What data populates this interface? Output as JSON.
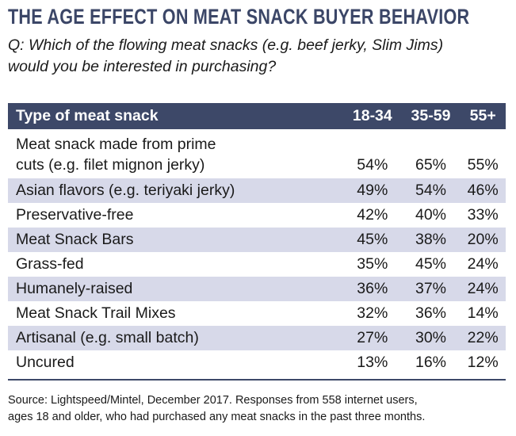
{
  "header": {
    "title": "THE AGE EFFECT ON MEAT SNACK BUYER BEHAVIOR",
    "question": [
      "Q: Which of the flowing meat snacks (e.g. beef jerky, Slim Jims)",
      "would you be interested in purchasing?"
    ]
  },
  "table": {
    "columns": [
      "Type of meat snack",
      "18-34",
      "35-59",
      "55+"
    ],
    "rows": [
      [
        [
          "Meat snack made from prime",
          "cuts (e.g. filet mignon jerky)"
        ],
        "54%",
        "65%",
        "55%"
      ],
      [
        "Asian flavors (e.g. teriyaki jerky)",
        "49%",
        "54%",
        "46%"
      ],
      [
        "Preservative-free",
        "42%",
        "40%",
        "33%"
      ],
      [
        "Meat Snack Bars",
        "45%",
        "38%",
        "20%"
      ],
      [
        "Grass-fed",
        "35%",
        "45%",
        "24%"
      ],
      [
        "Humanely-raised",
        "36%",
        "37%",
        "24%"
      ],
      [
        "Meat Snack Trail Mixes",
        "32%",
        "36%",
        "14%"
      ],
      [
        "Artisanal (e.g. small batch)",
        "27%",
        "30%",
        "22%"
      ],
      [
        "Uncured",
        "13%",
        "16%",
        "12%"
      ]
    ]
  },
  "footer": {
    "source": [
      "Source: Lightspeed/Mintel, December 2017. Responses from 558 internet users,",
      "ages 18 and older, who had purchased any meat snacks in the past three months."
    ]
  }
}
